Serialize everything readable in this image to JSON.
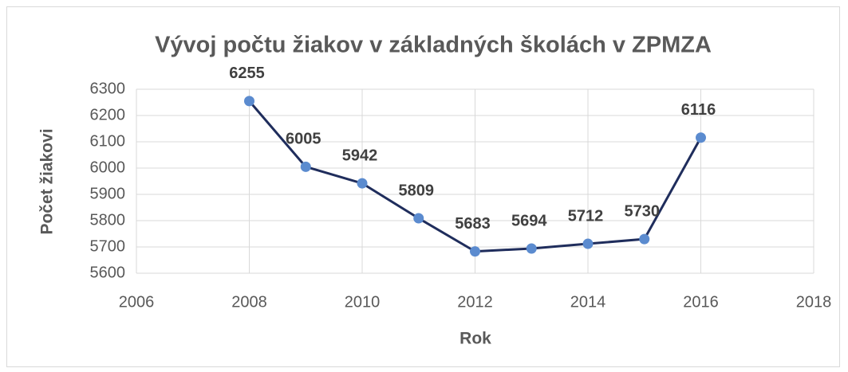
{
  "chart_data": {
    "type": "line",
    "title": "Vývoj počtu žiakov v základných školách v ZPMZA",
    "x_label": "Rok",
    "y_label": "Počet žiakovi",
    "x": [
      2008,
      2009,
      2010,
      2011,
      2012,
      2013,
      2014,
      2015,
      2016
    ],
    "series": [
      {
        "name": "Počet žiakov",
        "color": "#1f2d5c",
        "marker_color": "#5b8bcf",
        "values": [
          6255,
          6005,
          5942,
          5809,
          5683,
          5694,
          5712,
          5730,
          6116
        ]
      }
    ],
    "xlim": [
      2006,
      2018
    ],
    "xticks": [
      2006,
      2008,
      2010,
      2012,
      2014,
      2016,
      2018
    ],
    "ylim": [
      5600,
      6300
    ],
    "yticks": [
      5600,
      5700,
      5800,
      5900,
      6000,
      6100,
      6200,
      6300
    ],
    "grid": true
  }
}
